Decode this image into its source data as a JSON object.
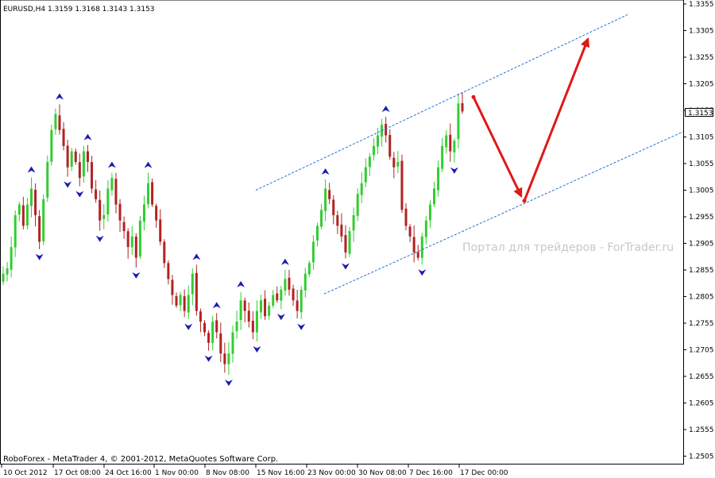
{
  "header": {
    "symbol_info": "EURUSD,H4  1.3159 1.3168 1.3143 1.3153"
  },
  "footer": {
    "text": "RoboForex - MetaTrader 4, © 2001-2012, MetaQuotes Software Corp."
  },
  "watermark": "Портал для трейдеров - ForTrader.ru",
  "current_price": "1.3153",
  "colors": {
    "background": "#ffffff",
    "bull": "#32cd32",
    "bear": "#b22222",
    "fractal_arrow": "#1a1ab0",
    "channel": "#1e6fdc",
    "forecast": "#e01818",
    "axis": "#000000"
  },
  "chart_data": {
    "type": "candlestick",
    "instrument": "EURUSD",
    "timeframe": "H4",
    "yticks": [
      "1.3355",
      "1.3305",
      "1.3255",
      "1.3205",
      "1.3155",
      "1.3105",
      "1.3055",
      "1.3005",
      "1.2955",
      "1.2905",
      "1.2855",
      "1.2805",
      "1.2755",
      "1.2705",
      "1.2655",
      "1.2605",
      "1.2555",
      "1.2505"
    ],
    "xticks": [
      "10 Oct 2012",
      "17 Oct 08:00",
      "24 Oct 16:00",
      "1 Nov 00:00",
      "8 Nov 08:00",
      "15 Nov 16:00",
      "23 Nov 00:00",
      "30 Nov 08:00",
      "7 Dec 16:00",
      "17 Dec 00:00"
    ],
    "ylim": [
      1.2505,
      1.3355
    ],
    "closes": [
      1.2848,
      1.2858,
      1.2898,
      1.2958,
      1.2978,
      1.2938,
      1.2978,
      1.3008,
      1.2958,
      1.2908,
      1.2988,
      1.3058,
      1.3118,
      1.3148,
      1.3118,
      1.3088,
      1.3048,
      1.3078,
      1.3058,
      1.3028,
      1.3078,
      1.3058,
      1.3008,
      1.2988,
      1.2948,
      1.2958,
      1.3008,
      1.3028,
      1.2978,
      1.2948,
      1.2928,
      1.2898,
      1.2918,
      1.2878,
      1.2948,
      1.2978,
      1.3018,
      1.2978,
      1.2948,
      1.2908,
      1.2868,
      1.2838,
      1.2808,
      1.2788,
      1.2808,
      1.2778,
      1.2808,
      1.2848,
      1.2778,
      1.2758,
      1.2738,
      1.2718,
      1.2758,
      1.2738,
      1.2698,
      1.2678,
      1.2698,
      1.2738,
      1.2758,
      1.2798,
      1.2778,
      1.2758,
      1.2738,
      1.2778,
      1.2798,
      1.2768,
      1.2788,
      1.2808,
      1.2798,
      1.2818,
      1.2838,
      1.2818,
      1.2798,
      1.2778,
      1.2818,
      1.2848,
      1.2868,
      1.2908,
      1.2938,
      1.2968,
      1.3008,
      1.2988,
      1.2958,
      1.2938,
      1.2918,
      1.2888,
      1.2928,
      1.2958,
      1.2998,
      1.3018,
      1.3048,
      1.3068,
      1.3088,
      1.3108,
      1.3128,
      1.3108,
      1.3068,
      1.3048,
      1.3058,
      1.2968,
      1.2938,
      1.2918,
      1.2888,
      1.2878,
      1.2918,
      1.2948,
      1.2978,
      1.3008,
      1.3048,
      1.3088,
      1.3108,
      1.3078,
      1.3098,
      1.3168,
      1.3153
    ],
    "channel": {
      "upper": {
        "from": [
          "10 Nov 16:00",
          1.3005
        ],
        "to": [
          "21 Dec 08:00",
          1.3335
        ]
      },
      "lower": {
        "from": [
          "20 Nov 00:00",
          1.281
        ],
        "to": [
          "27 Dec 12:00",
          1.3115
        ]
      }
    },
    "forecast": {
      "points": [
        {
          "time": "17 Dec 12:00",
          "price": 1.318
        },
        {
          "time": "20 Dec 00:00",
          "price": 1.2985
        },
        {
          "time": "21 Dec 04:00",
          "price": 1.3295
        }
      ]
    },
    "fractals": "up/down arrows at local highs/lows"
  }
}
